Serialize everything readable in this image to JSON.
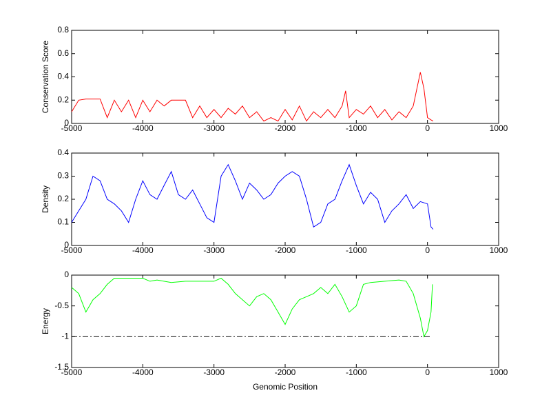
{
  "chart_data": [
    {
      "type": "line",
      "ylabel": "Conservation Score",
      "xlim": [
        -5000,
        1000
      ],
      "xticks": [
        -5000,
        -4000,
        -3000,
        -2000,
        -1000,
        0,
        1000
      ],
      "ylim": [
        0,
        0.8
      ],
      "yticks": [
        0,
        0.2,
        0.4,
        0.6,
        0.8
      ],
      "series": [
        {
          "color": "#ff0000",
          "style": "solid",
          "x": [
            -5000,
            -4900,
            -4800,
            -4700,
            -4600,
            -4500,
            -4400,
            -4300,
            -4200,
            -4100,
            -4000,
            -3900,
            -3800,
            -3700,
            -3600,
            -3500,
            -3400,
            -3300,
            -3200,
            -3100,
            -3000,
            -2900,
            -2800,
            -2700,
            -2600,
            -2500,
            -2400,
            -2300,
            -2200,
            -2100,
            -2000,
            -1900,
            -1800,
            -1700,
            -1600,
            -1500,
            -1400,
            -1300,
            -1200,
            -1150,
            -1100,
            -1000,
            -900,
            -800,
            -700,
            -600,
            -500,
            -400,
            -300,
            -200,
            -100,
            -50,
            0,
            50,
            80
          ],
          "values": [
            0.1,
            0.2,
            0.21,
            0.21,
            0.21,
            0.05,
            0.2,
            0.1,
            0.2,
            0.05,
            0.2,
            0.1,
            0.2,
            0.15,
            0.2,
            0.2,
            0.2,
            0.05,
            0.15,
            0.05,
            0.12,
            0.05,
            0.13,
            0.08,
            0.15,
            0.05,
            0.1,
            0.02,
            0.05,
            0.02,
            0.12,
            0.03,
            0.15,
            0.02,
            0.1,
            0.05,
            0.12,
            0.05,
            0.15,
            0.28,
            0.05,
            0.12,
            0.08,
            0.15,
            0.05,
            0.12,
            0.03,
            0.1,
            0.05,
            0.15,
            0.44,
            0.3,
            0.05,
            0.03,
            0.02
          ]
        }
      ]
    },
    {
      "type": "line",
      "ylabel": "Density",
      "xlim": [
        -5000,
        1000
      ],
      "xticks": [
        -5000,
        -4000,
        -3000,
        -2000,
        -1000,
        0,
        1000
      ],
      "ylim": [
        0,
        0.4
      ],
      "yticks": [
        0,
        0.1,
        0.2,
        0.3,
        0.4
      ],
      "series": [
        {
          "color": "#0000ff",
          "style": "solid",
          "x": [
            -5000,
            -4900,
            -4800,
            -4700,
            -4600,
            -4500,
            -4400,
            -4300,
            -4200,
            -4100,
            -4000,
            -3900,
            -3800,
            -3700,
            -3600,
            -3500,
            -3400,
            -3300,
            -3200,
            -3100,
            -3000,
            -2900,
            -2800,
            -2700,
            -2600,
            -2500,
            -2400,
            -2300,
            -2200,
            -2100,
            -2000,
            -1900,
            -1800,
            -1700,
            -1600,
            -1500,
            -1400,
            -1300,
            -1200,
            -1100,
            -1000,
            -900,
            -800,
            -700,
            -600,
            -500,
            -400,
            -300,
            -200,
            -100,
            0,
            50,
            80
          ],
          "values": [
            0.1,
            0.15,
            0.2,
            0.3,
            0.28,
            0.2,
            0.18,
            0.15,
            0.1,
            0.2,
            0.28,
            0.22,
            0.2,
            0.26,
            0.32,
            0.22,
            0.2,
            0.24,
            0.18,
            0.12,
            0.1,
            0.3,
            0.35,
            0.28,
            0.2,
            0.27,
            0.24,
            0.2,
            0.22,
            0.27,
            0.3,
            0.32,
            0.3,
            0.2,
            0.08,
            0.1,
            0.18,
            0.2,
            0.28,
            0.35,
            0.26,
            0.18,
            0.23,
            0.2,
            0.1,
            0.15,
            0.18,
            0.22,
            0.16,
            0.19,
            0.18,
            0.08,
            0.07
          ]
        }
      ]
    },
    {
      "type": "line",
      "ylabel": "Energy",
      "xlabel": "Genomic Position",
      "xlim": [
        -5000,
        1000
      ],
      "xticks": [
        -5000,
        -4000,
        -3000,
        -2000,
        -1000,
        0,
        1000
      ],
      "ylim": [
        -1.5,
        0
      ],
      "yticks": [
        -1.5,
        -1,
        -0.5,
        0
      ],
      "series": [
        {
          "color": "#00ff00",
          "style": "solid",
          "x": [
            -5000,
            -4900,
            -4800,
            -4700,
            -4600,
            -4500,
            -4400,
            -4200,
            -4000,
            -3900,
            -3800,
            -3600,
            -3400,
            -3200,
            -3000,
            -2900,
            -2800,
            -2700,
            -2600,
            -2500,
            -2400,
            -2300,
            -2200,
            -2100,
            -2000,
            -1900,
            -1800,
            -1700,
            -1600,
            -1500,
            -1400,
            -1300,
            -1200,
            -1100,
            -1000,
            -900,
            -800,
            -600,
            -400,
            -300,
            -200,
            -100,
            -50,
            0,
            50,
            70
          ],
          "values": [
            -0.2,
            -0.3,
            -0.6,
            -0.4,
            -0.3,
            -0.15,
            -0.05,
            -0.05,
            -0.05,
            -0.1,
            -0.08,
            -0.12,
            -0.1,
            -0.1,
            -0.1,
            -0.05,
            -0.15,
            -0.3,
            -0.4,
            -0.5,
            -0.35,
            -0.3,
            -0.4,
            -0.6,
            -0.8,
            -0.55,
            -0.4,
            -0.35,
            -0.3,
            -0.2,
            -0.3,
            -0.15,
            -0.35,
            -0.6,
            -0.5,
            -0.15,
            -0.12,
            -0.1,
            -0.08,
            -0.1,
            -0.3,
            -0.7,
            -1.0,
            -0.9,
            -0.6,
            -0.15
          ]
        },
        {
          "color": "#000000",
          "style": "dashdot",
          "x": [
            -5000,
            50
          ],
          "values": [
            -1,
            -1
          ]
        }
      ]
    }
  ]
}
